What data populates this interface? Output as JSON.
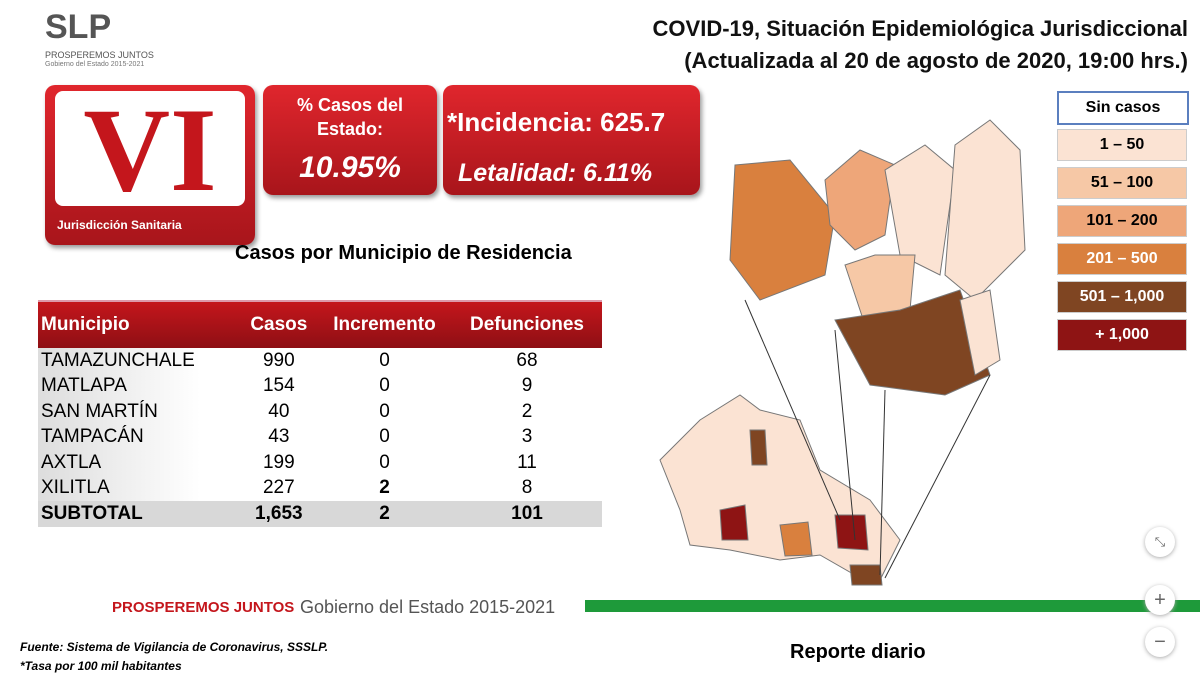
{
  "header": {
    "logo": "SLP",
    "logo_motto": "PROSPEREMOS JUNTOS",
    "logo_government": "Gobierno del Estado 2015-2021",
    "title_line1": "COVID-19, Situación Epidemiológica Jurisdiccional",
    "title_line2": "(Actualizada al 20 de agosto de 2020, 19:00 hrs.)"
  },
  "badge": {
    "numeral": "VI",
    "label": "Jurisdicción Sanitaria"
  },
  "stats": {
    "share_label": "% Casos del Estado:",
    "share_value": "10.95%",
    "incidence": "*Incidencia: 625.7",
    "lethality": "Letalidad: 6.11%"
  },
  "section_title": "Casos por Municipio  de Residencia",
  "table": {
    "headers": [
      "Municipio",
      "Casos",
      "Incremento",
      "Defunciones"
    ],
    "rows": [
      [
        "TAMAZUNCHALE",
        "990",
        "0",
        "68"
      ],
      [
        "MATLAPA",
        "154",
        "0",
        "9"
      ],
      [
        "SAN MARTÍN",
        "40",
        "0",
        "2"
      ],
      [
        "TAMPACÁN",
        "43",
        "0",
        "3"
      ],
      [
        "AXTLA",
        "199",
        "0",
        "11"
      ],
      [
        "XILITLA",
        "227",
        "2",
        "8"
      ]
    ],
    "subtotal": [
      "SUBTOTAL",
      "1,653",
      "2",
      "101"
    ]
  },
  "legend": [
    {
      "label": "Sin casos",
      "color": "#ffffff"
    },
    {
      "label": "1 – 50",
      "color": "#fbe3d3"
    },
    {
      "label": "51 – 100",
      "color": "#f6c8a6"
    },
    {
      "label": "101 – 200",
      "color": "#eea679"
    },
    {
      "label": "201 – 500",
      "color": "#d9803e"
    },
    {
      "label": "501 – 1,000",
      "color": "#7f4522"
    },
    {
      "label": "+ 1,000",
      "color": "#8e1414"
    }
  ],
  "footer": {
    "motto": "PROSPEREMOS JUNTOS",
    "government": "Gobierno del Estado 2015-2021",
    "source": "Fuente: Sistema de Vigilancia de Coronavirus, SSSLP.",
    "note": "*Tasa por 100 mil habitantes",
    "report": "Reporte diario"
  },
  "controls": {
    "zoom_in": "+",
    "zoom_out": "−"
  }
}
